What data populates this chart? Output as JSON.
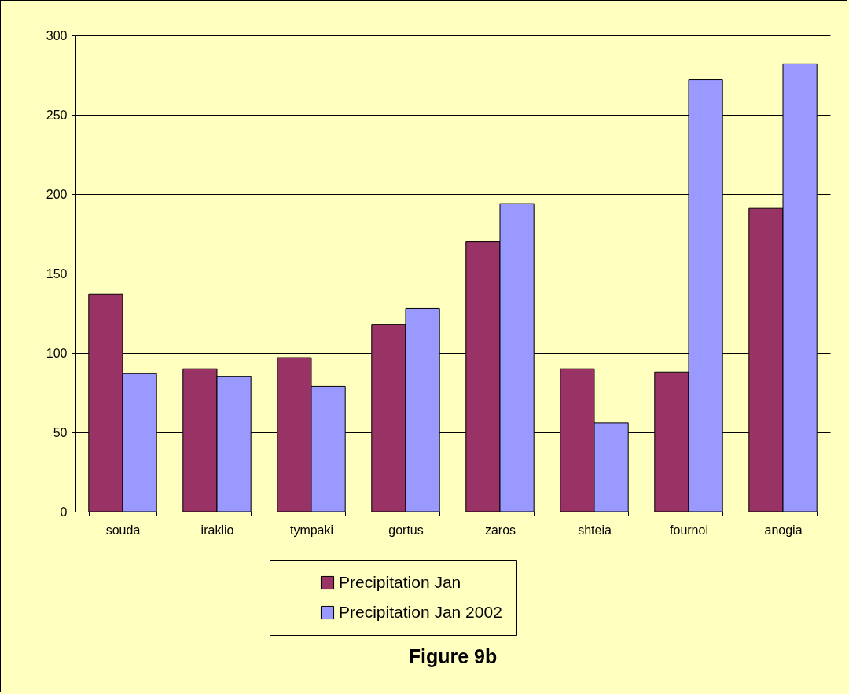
{
  "chart_data": {
    "type": "bar",
    "title": "Figure  9b",
    "categories": [
      "souda",
      "iraklio",
      "tympaki",
      "gortus",
      "zaros",
      "shteia",
      "fournoi",
      "anogia"
    ],
    "series": [
      {
        "name": "Precipitation Jan",
        "color": "#993366",
        "values": [
          137,
          90,
          97,
          118,
          170,
          90,
          88,
          191
        ]
      },
      {
        "name": "Precipitation Jan 2002",
        "color": "#9999ff",
        "values": [
          87,
          85,
          79,
          128,
          194,
          56,
          272,
          282
        ]
      }
    ],
    "ylim": [
      0,
      300
    ],
    "yticks": [
      0,
      50,
      100,
      150,
      200,
      250,
      300
    ],
    "grid": "y",
    "legend": "bottom"
  }
}
